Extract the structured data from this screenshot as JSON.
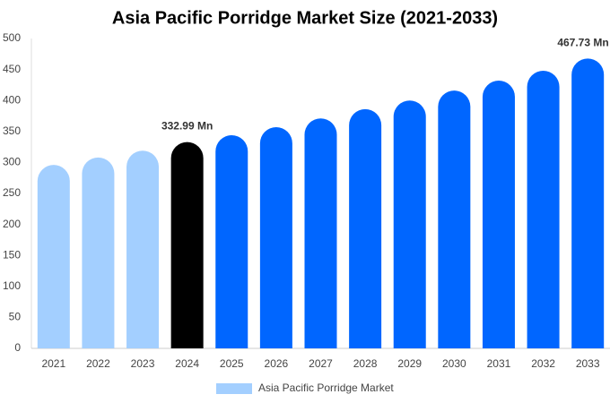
{
  "chart_data": {
    "type": "bar",
    "title": "Asia Pacific Porridge Market Size (2021-2033)",
    "categories": [
      "2021",
      "2022",
      "2023",
      "2024",
      "2025",
      "2026",
      "2027",
      "2028",
      "2029",
      "2030",
      "2031",
      "2032",
      "2033"
    ],
    "series": [
      {
        "name": "Asia Pacific Porridge Market",
        "color": "#a3cfff",
        "values": [
          296,
          308,
          319,
          332.99,
          344,
          357,
          371,
          386,
          400,
          416,
          432,
          448,
          467.73
        ],
        "value_labels": [
          null,
          null,
          null,
          "332.99 Mn",
          null,
          null,
          null,
          null,
          null,
          null,
          null,
          null,
          "467.73 Mn"
        ],
        "colors": [
          "#a3cfff",
          "#a3cfff",
          "#a3cfff",
          "#000000",
          "#0066ff",
          "#0066ff",
          "#0066ff",
          "#0066ff",
          "#0066ff",
          "#0066ff",
          "#0066ff",
          "#0066ff",
          "#0066ff"
        ]
      }
    ],
    "ylim": [
      0,
      500
    ],
    "yticks": [
      0,
      50,
      100,
      150,
      200,
      250,
      300,
      350,
      400,
      450,
      500
    ],
    "grid": false,
    "legend": "bottom"
  }
}
